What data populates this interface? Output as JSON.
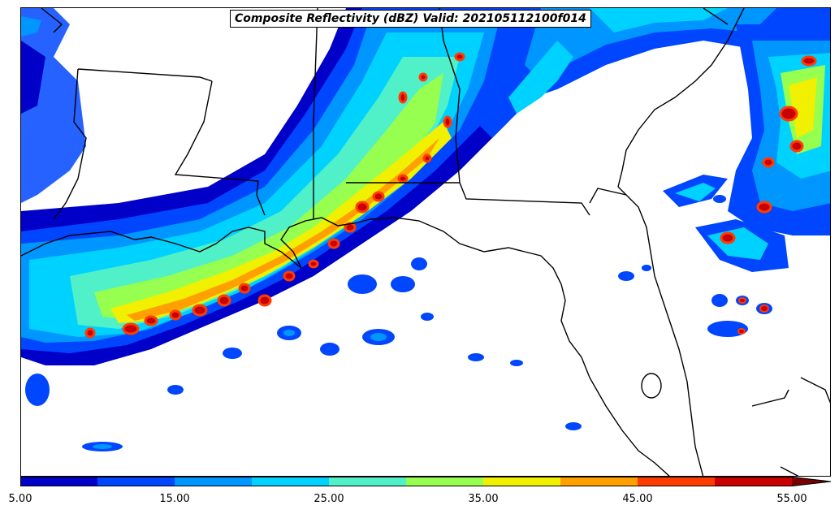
{
  "title": "Composite Reflectivity (dBZ) Valid: 202105112100f014",
  "colorbar": {
    "levels": [
      5,
      10,
      15,
      20,
      25,
      30,
      35,
      40,
      45,
      50,
      55
    ],
    "colors": [
      "#0000c8",
      "#0046ff",
      "#0096ff",
      "#00d2ff",
      "#50f0c8",
      "#96ff50",
      "#f0f000",
      "#ffa000",
      "#ff3c00",
      "#c80000"
    ],
    "extend_color": "#780000",
    "tick_labels": [
      "5.00",
      "15.00",
      "25.00",
      "35.00",
      "45.00",
      "55.00"
    ]
  }
}
